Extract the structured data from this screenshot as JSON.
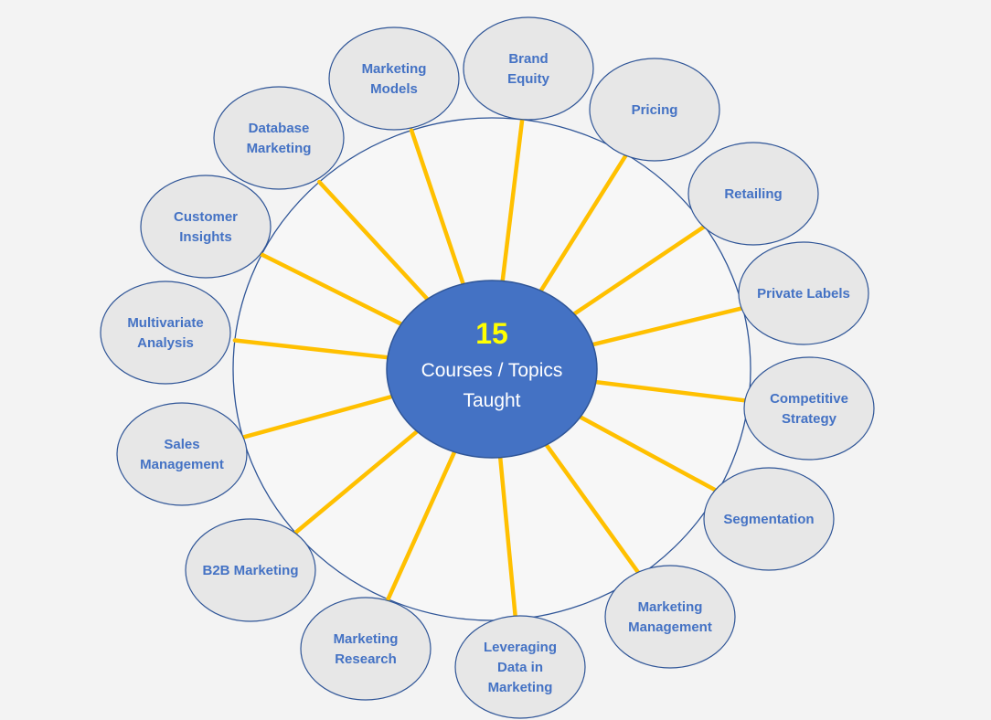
{
  "hub": {
    "count": "15",
    "label_lines": [
      "Courses / Topics",
      "Taught"
    ]
  },
  "topics": [
    {
      "id": "brand-equity",
      "lines": [
        "Brand",
        "Equity"
      ]
    },
    {
      "id": "pricing",
      "lines": [
        "Pricing"
      ]
    },
    {
      "id": "retailing",
      "lines": [
        "Retailing"
      ]
    },
    {
      "id": "private-labels",
      "lines": [
        "Private Labels"
      ]
    },
    {
      "id": "competitive-strategy",
      "lines": [
        "Competitive",
        "Strategy"
      ]
    },
    {
      "id": "segmentation",
      "lines": [
        "Segmentation"
      ]
    },
    {
      "id": "marketing-management",
      "lines": [
        "Marketing",
        "Management"
      ]
    },
    {
      "id": "leveraging-data-in-marketing",
      "lines": [
        "Leveraging",
        "Data in",
        "Marketing"
      ]
    },
    {
      "id": "marketing-research",
      "lines": [
        "Marketing",
        "Research"
      ]
    },
    {
      "id": "b2b-marketing",
      "lines": [
        "B2B Marketing"
      ]
    },
    {
      "id": "sales-management",
      "lines": [
        "Sales",
        "Management"
      ]
    },
    {
      "id": "multivariate-analysis",
      "lines": [
        "Multivariate",
        "Analysis"
      ]
    },
    {
      "id": "customer-insights",
      "lines": [
        "Customer",
        "Insights"
      ]
    },
    {
      "id": "database-marketing",
      "lines": [
        "Database",
        "Marketing"
      ]
    },
    {
      "id": "marketing-models",
      "lines": [
        "Marketing",
        "Models"
      ]
    }
  ],
  "colors": {
    "hub_fill": "#4472c4",
    "hub_count_text": "#ffff00",
    "hub_label_text": "#ffffff",
    "spoke": "#ffc000",
    "ring_stroke": "#2f5597",
    "topic_fill": "#e7e7e7",
    "topic_stroke": "#2f5597",
    "topic_text": "#4472c4"
  }
}
